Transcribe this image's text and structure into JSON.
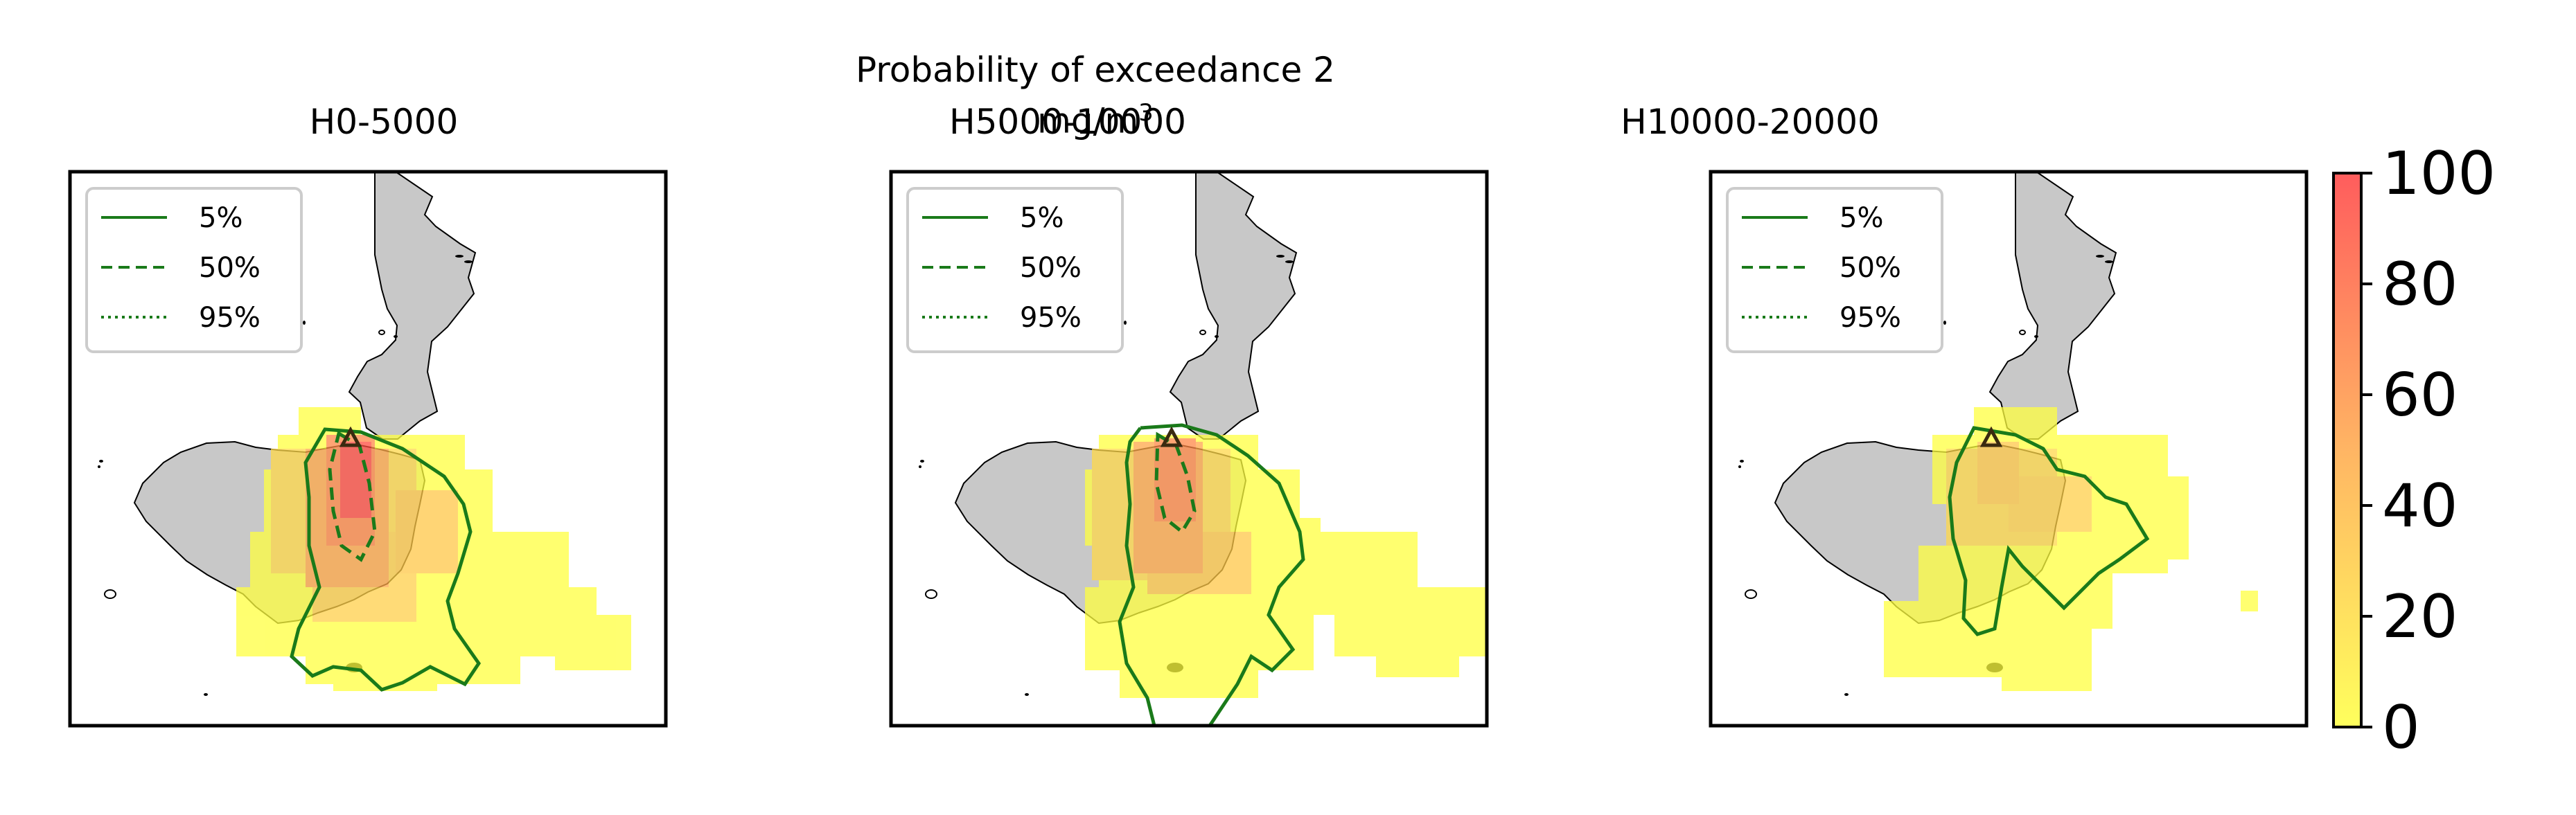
{
  "figure": {
    "title_main": "Probability of exceedance 2 mg/m",
    "title_sup": "3"
  },
  "panels": [
    {
      "title": "H0-5000"
    },
    {
      "title": "H5000-10000"
    },
    {
      "title": "H10000-20000"
    }
  ],
  "legend": {
    "entries": [
      {
        "label": "5%",
        "style": "solid"
      },
      {
        "label": "50%",
        "style": "dashed"
      },
      {
        "label": "95%",
        "style": "dotted"
      }
    ],
    "line_color": "#1a7a1a"
  },
  "colorbar": {
    "ticks": [
      "0",
      "20",
      "40",
      "60",
      "80",
      "100"
    ],
    "range": [
      0,
      100
    ],
    "colormap": [
      "#ffff40",
      "#ff4040"
    ]
  },
  "map_style": {
    "land_color": "#c8c8c8",
    "sea_color": "#ffffff",
    "vent_marker": "triangle"
  }
}
